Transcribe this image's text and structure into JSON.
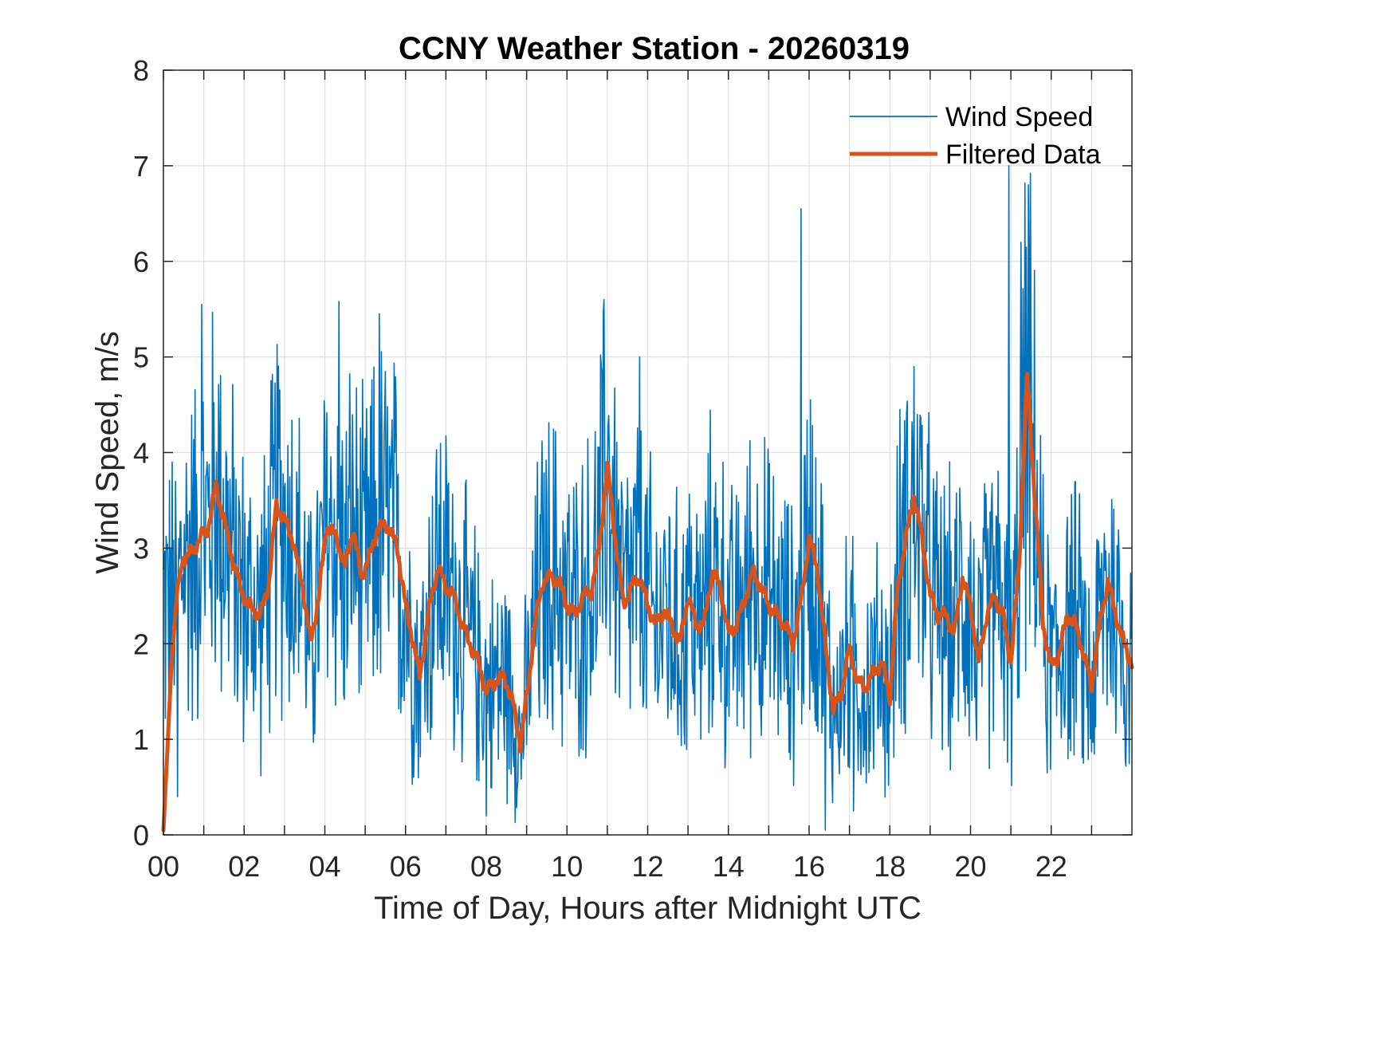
{
  "chart_data": {
    "type": "line",
    "title": "CCNY Weather Station - 20260319",
    "xlabel": "Time of Day, Hours after Midnight UTC",
    "ylabel": "Wind Speed, m/s",
    "xlim": [
      0,
      24
    ],
    "ylim": [
      0,
      8
    ],
    "grid": true,
    "legend_position": "top-right",
    "x_ticks": [
      0,
      2,
      4,
      6,
      8,
      10,
      12,
      14,
      16,
      18,
      20,
      22
    ],
    "x_tick_labels": [
      "00",
      "02",
      "04",
      "06",
      "08",
      "10",
      "12",
      "14",
      "16",
      "18",
      "20",
      "22"
    ],
    "x_minor_ticks": [
      1,
      3,
      5,
      7,
      9,
      11,
      13,
      15,
      17,
      19,
      21,
      23
    ],
    "y_ticks": [
      0,
      1,
      2,
      3,
      4,
      5,
      6,
      7,
      8
    ],
    "y_tick_labels": [
      "0",
      "1",
      "2",
      "3",
      "4",
      "5",
      "6",
      "7",
      "8"
    ],
    "series": [
      {
        "name": "Wind Speed",
        "color": "#0072BD",
        "style": "thin",
        "noise_model": "raw 1-minute samples oscillating around filtered curve",
        "notable_peaks": [
          {
            "x": 0.95,
            "y": 5.55
          },
          {
            "x": 4.35,
            "y": 5.58
          },
          {
            "x": 5.35,
            "y": 5.45
          },
          {
            "x": 10.85,
            "y": 4.9
          },
          {
            "x": 11.8,
            "y": 5.0
          },
          {
            "x": 15.8,
            "y": 6.55
          },
          {
            "x": 20.95,
            "y": 7.0
          },
          {
            "x": 21.25,
            "y": 6.2
          }
        ],
        "notable_troughs": [
          {
            "x": 0.35,
            "y": 0.4
          },
          {
            "x": 8.0,
            "y": 0.2
          },
          {
            "x": 16.4,
            "y": 0.05
          },
          {
            "x": 17.1,
            "y": 0.25
          }
        ]
      },
      {
        "name": "Filtered Data",
        "color": "#D95319",
        "style": "thick",
        "x": [
          0.0,
          0.1,
          0.2,
          0.35,
          0.5,
          0.7,
          0.9,
          1.1,
          1.3,
          1.5,
          1.7,
          1.9,
          2.1,
          2.4,
          2.6,
          2.8,
          3.0,
          3.2,
          3.45,
          3.65,
          3.85,
          4.05,
          4.3,
          4.5,
          4.7,
          4.9,
          5.1,
          5.3,
          5.55,
          5.8,
          6.0,
          6.2,
          6.35,
          6.6,
          6.8,
          7.0,
          7.2,
          7.4,
          7.6,
          7.8,
          8.0,
          8.2,
          8.45,
          8.65,
          8.85,
          9.05,
          9.2,
          9.4,
          9.6,
          9.8,
          10.0,
          10.2,
          10.4,
          10.6,
          10.8,
          11.0,
          11.2,
          11.4,
          11.6,
          11.8,
          12.0,
          12.2,
          12.4,
          12.6,
          12.8,
          13.0,
          13.2,
          13.4,
          13.6,
          13.8,
          14.0,
          14.2,
          14.4,
          14.6,
          14.8,
          15.0,
          15.2,
          15.4,
          15.6,
          15.8,
          16.0,
          16.2,
          16.4,
          16.6,
          16.8,
          17.0,
          17.2,
          17.4,
          17.6,
          17.8,
          18.0,
          18.2,
          18.4,
          18.6,
          18.8,
          19.0,
          19.2,
          19.4,
          19.6,
          19.8,
          20.0,
          20.2,
          20.4,
          20.6,
          20.8,
          21.0,
          21.2,
          21.4,
          21.6,
          21.8,
          22.0,
          22.2,
          22.4,
          22.6,
          22.8,
          23.0,
          23.2,
          23.4,
          23.6,
          23.8,
          24.0
        ],
        "y": [
          0.05,
          0.9,
          1.8,
          2.6,
          2.9,
          2.95,
          3.1,
          3.2,
          3.65,
          3.3,
          2.9,
          2.6,
          2.4,
          2.3,
          2.6,
          3.45,
          3.3,
          3.1,
          2.6,
          2.0,
          2.5,
          3.25,
          3.1,
          2.8,
          3.2,
          2.7,
          2.9,
          3.2,
          3.25,
          3.0,
          2.4,
          2.0,
          1.65,
          2.4,
          2.8,
          2.6,
          2.5,
          2.2,
          2.0,
          1.8,
          1.5,
          1.6,
          1.65,
          1.4,
          0.95,
          1.6,
          2.2,
          2.65,
          2.7,
          2.65,
          2.4,
          2.3,
          2.5,
          2.55,
          3.0,
          3.85,
          3.1,
          2.4,
          2.6,
          2.7,
          2.4,
          2.2,
          2.35,
          2.2,
          2.0,
          2.5,
          2.2,
          2.2,
          2.75,
          2.6,
          2.1,
          2.2,
          2.45,
          2.75,
          2.6,
          2.4,
          2.3,
          2.2,
          2.0,
          2.45,
          3.1,
          2.8,
          2.0,
          1.3,
          1.5,
          1.95,
          1.6,
          1.55,
          1.7,
          1.8,
          1.45,
          2.6,
          3.1,
          3.55,
          3.1,
          2.5,
          2.3,
          2.3,
          2.1,
          2.7,
          2.4,
          1.8,
          2.3,
          2.5,
          2.3,
          1.8,
          2.8,
          4.8,
          3.5,
          2.2,
          1.75,
          1.9,
          2.3,
          2.2,
          1.9,
          1.55,
          2.2,
          2.65,
          2.3,
          2.0,
          1.8
        ]
      }
    ],
    "legend": [
      {
        "label": "Wind Speed",
        "color": "#0072BD"
      },
      {
        "label": "Filtered Data",
        "color": "#D95319"
      }
    ]
  }
}
